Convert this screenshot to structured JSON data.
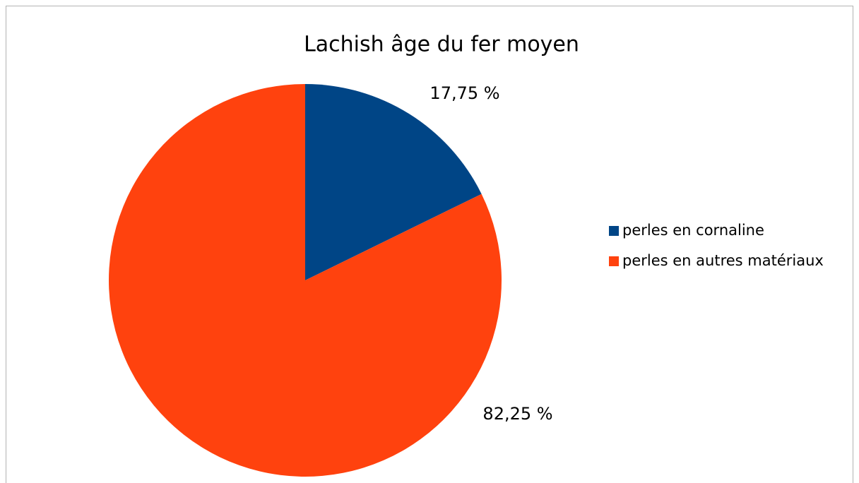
{
  "chart_data": {
    "type": "pie",
    "title": "Lachish âge du fer moyen",
    "categories": [
      "perles en cornaline",
      "perles en autres matériaux"
    ],
    "values": [
      17.75,
      82.25
    ],
    "value_labels": [
      "17,75 %",
      "82,25 %"
    ],
    "colors": [
      "#004586",
      "#ff420e"
    ],
    "legend": "right"
  }
}
